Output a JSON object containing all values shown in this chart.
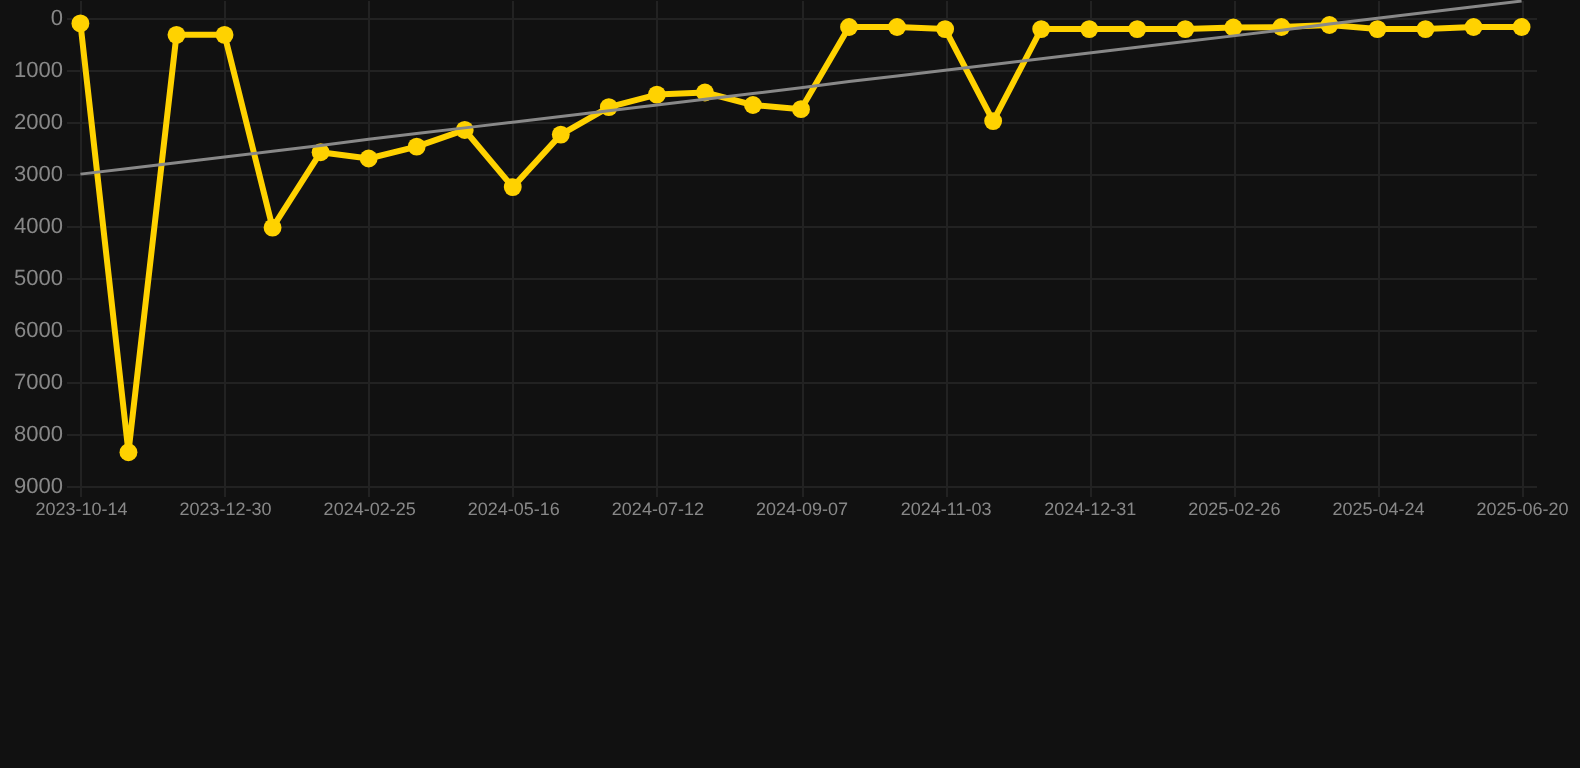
{
  "chart_data": {
    "type": "line",
    "categories": [
      "2023-10-14",
      null,
      null,
      "2023-12-30",
      null,
      null,
      "2024-02-25",
      null,
      null,
      "2024-05-16",
      null,
      null,
      "2024-07-12",
      null,
      null,
      "2024-09-07",
      null,
      null,
      "2024-11-03",
      null,
      null,
      "2024-12-31",
      null,
      null,
      "2025-02-26",
      null,
      null,
      "2025-04-24",
      null,
      null,
      "2025-06-20"
    ],
    "series": [
      {
        "color": "#ffd200",
        "values": [
          100,
          8350,
          320,
          320,
          4030,
          2580,
          2700,
          2470,
          2150,
          3250,
          2240,
          1710,
          1470,
          1430,
          1670,
          1750,
          170,
          170,
          210,
          1980,
          210,
          210,
          210,
          210,
          180,
          170,
          130,
          210,
          210,
          170,
          170
        ]
      },
      {
        "color": "#888888",
        "marker": "none",
        "values": [
          3000,
          2890,
          2780,
          2670,
          2560,
          2450,
          2330,
          2220,
          2110,
          2000,
          1890,
          1780,
          1670,
          1560,
          1450,
          1340,
          1220,
          1110,
          1000,
          890,
          780,
          670,
          560,
          450,
          340,
          230,
          110,
          0,
          -110,
          -220,
          -330
        ]
      }
    ],
    "ylim": [
      9000,
      -350
    ],
    "yticks": [
      0,
      1000,
      2000,
      3000,
      4000,
      5000,
      6000,
      7000,
      8000,
      9000
    ],
    "grid": true,
    "marker": "circle"
  }
}
